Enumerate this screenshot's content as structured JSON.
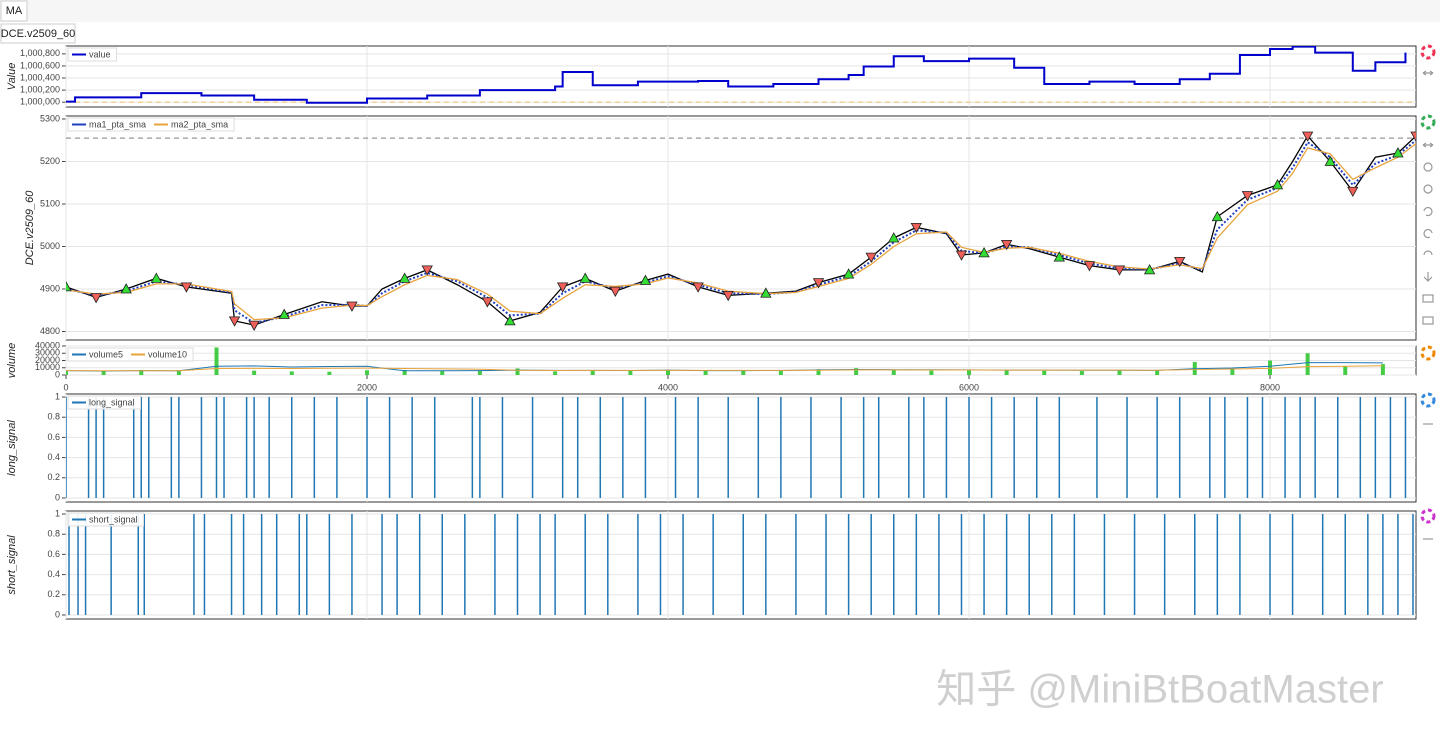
{
  "tabs": {
    "main": "MA",
    "sub": "DCE.v2509_60"
  },
  "watermark": "知乎 @MiniBtBoatMaster",
  "chart_data": [
    {
      "type": "step",
      "ylabel": "Value",
      "ylim": [
        999920,
        1000930
      ],
      "yticks": [
        {
          "value": 1000000,
          "label": "1,000,000"
        },
        {
          "value": 1000200,
          "label": "1,000,200"
        },
        {
          "value": 1000400,
          "label": "1,000,400"
        },
        {
          "value": 1000600,
          "label": "1,000,600"
        },
        {
          "value": 1000800,
          "label": "1,000,800"
        }
      ],
      "reference_line": 1000000,
      "reference_color": "#f2c57c",
      "series": [
        {
          "name": "value",
          "color": "#0000cc",
          "x": [
            0,
            60,
            500,
            900,
            1250,
            1600,
            2000,
            2400,
            2750,
            3250,
            3300,
            3500,
            3800,
            4200,
            4400,
            4700,
            5000,
            5200,
            5300,
            5500,
            5700,
            6000,
            6300,
            6500,
            6800,
            7100,
            7400,
            7600,
            7800,
            8000,
            8150,
            8300,
            8550,
            8700,
            8900
          ],
          "values": [
            1000010,
            1000080,
            1000150,
            1000110,
            1000040,
            999990,
            1000060,
            1000110,
            1000200,
            1000260,
            1000500,
            1000280,
            1000340,
            1000350,
            1000260,
            1000300,
            1000380,
            1000450,
            1000590,
            1000760,
            1000680,
            1000720,
            1000570,
            1000300,
            1000340,
            1000300,
            1000380,
            1000470,
            1000780,
            1000880,
            1000920,
            1000820,
            1000520,
            1000660,
            1000820
          ]
        }
      ]
    },
    {
      "type": "line",
      "ylabel": "DCE.v2509_60",
      "ylim": [
        4780,
        5307
      ],
      "yticks": [
        4800,
        4900,
        5000,
        5100,
        5200,
        5300
      ],
      "reference_line": 5255,
      "reference_color": "#999999",
      "x": [
        0,
        200,
        400,
        600,
        800,
        1000,
        1100,
        1120,
        1250,
        1450,
        1700,
        1900,
        2000,
        2100,
        2250,
        2400,
        2600,
        2800,
        2950,
        3150,
        3300,
        3450,
        3650,
        3850,
        4000,
        4200,
        4400,
        4650,
        4850,
        5000,
        5200,
        5350,
        5500,
        5650,
        5850,
        5950,
        6100,
        6250,
        6400,
        6600,
        6800,
        7000,
        7200,
        7400,
        7550,
        7650,
        7850,
        8050,
        8150,
        8250,
        8400,
        8550,
        8700,
        8850,
        8970
      ],
      "close": [
        4905,
        4880,
        4900,
        4925,
        4905,
        4895,
        4890,
        4825,
        4815,
        4840,
        4870,
        4860,
        4860,
        4900,
        4925,
        4945,
        4910,
        4870,
        4825,
        4845,
        4905,
        4925,
        4895,
        4920,
        4935,
        4905,
        4885,
        4890,
        4895,
        4915,
        4935,
        4975,
        5020,
        5045,
        5030,
        4980,
        4985,
        5005,
        4995,
        4975,
        4955,
        4945,
        4945,
        4965,
        4940,
        5070,
        5120,
        5145,
        5200,
        5260,
        5200,
        5130,
        5210,
        5220,
        5260
      ],
      "close_color": "#000000",
      "series": [
        {
          "name": "ma1_pta_sma",
          "color": "#1f3fbf",
          "values": [
            4900,
            4885,
            4895,
            4918,
            4910,
            4898,
            4892,
            4850,
            4820,
            4835,
            4862,
            4863,
            4860,
            4890,
            4918,
            4938,
            4918,
            4880,
            4838,
            4842,
            4890,
            4918,
            4902,
            4915,
            4930,
            4910,
            4890,
            4888,
            4893,
            4910,
            4930,
            4965,
            5010,
            5038,
            5032,
            4990,
            4984,
            5000,
            4998,
            4980,
            4960,
            4948,
            4946,
            4960,
            4945,
            5040,
            5110,
            5138,
            5185,
            5245,
            5210,
            5145,
            5195,
            5215,
            5250
          ]
        },
        {
          "name": "ma2_pta_sma",
          "color": "#e8a33c",
          "values": [
            4898,
            4888,
            4892,
            4912,
            4912,
            4900,
            4894,
            4865,
            4828,
            4832,
            4855,
            4862,
            4861,
            4882,
            4910,
            4932,
            4922,
            4888,
            4848,
            4842,
            4878,
            4910,
            4906,
            4912,
            4926,
            4914,
            4895,
            4889,
            4892,
            4906,
            4925,
            4958,
            5000,
            5030,
            5034,
            4998,
            4986,
            4996,
            4998,
            4984,
            4965,
            4952,
            4947,
            4957,
            4948,
            5020,
            5098,
            5130,
            5172,
            5232,
            5218,
            5158,
            5185,
            5210,
            5242
          ]
        }
      ],
      "buy_markers": {
        "color": "#33dd33",
        "x": [
          0,
          400,
          600,
          1450,
          2250,
          2950,
          3450,
          3850,
          4650,
          5200,
          5500,
          6100,
          6600,
          7200,
          7650,
          8050,
          8400,
          8850
        ],
        "y": [
          4905,
          4900,
          4925,
          4840,
          4925,
          4825,
          4925,
          4920,
          4890,
          4935,
          5020,
          4985,
          4975,
          4945,
          5070,
          5145,
          5200,
          5220
        ]
      },
      "sell_markers": {
        "color": "#f0605a",
        "x": [
          200,
          800,
          1120,
          1250,
          1900,
          2400,
          2800,
          3300,
          3650,
          4200,
          4400,
          5000,
          5350,
          5650,
          5950,
          6250,
          6800,
          7000,
          7400,
          7850,
          8250,
          8550,
          8970
        ],
        "y": [
          4880,
          4905,
          4825,
          4815,
          4860,
          4945,
          4870,
          4905,
          4895,
          4905,
          4885,
          4915,
          4975,
          5045,
          4980,
          5005,
          4955,
          4945,
          4965,
          5120,
          5260,
          5130,
          5260
        ]
      }
    },
    {
      "type": "bar",
      "ylabel": "volume",
      "xlim": [
        0,
        8970
      ],
      "xticks": [
        0,
        2000,
        4000,
        6000,
        8000
      ],
      "ylim": [
        0,
        40000
      ],
      "yticks": [
        0,
        10000,
        20000,
        30000,
        40000
      ],
      "bar_color": "#44cc44",
      "x": [
        0,
        250,
        500,
        750,
        1000,
        1250,
        1500,
        1750,
        2000,
        2250,
        2500,
        2750,
        3000,
        3250,
        3500,
        3750,
        4000,
        4250,
        4500,
        4750,
        5000,
        5250,
        5500,
        5750,
        6000,
        6250,
        6500,
        6750,
        7000,
        7250,
        7500,
        7750,
        8000,
        8250,
        8500,
        8750
      ],
      "values": [
        6000,
        5000,
        7000,
        5500,
        38000,
        6000,
        5000,
        4500,
        6500,
        7000,
        5500,
        6000,
        9000,
        5000,
        6500,
        5500,
        7000,
        6000,
        5500,
        6500,
        8000,
        9500,
        7000,
        6000,
        6500,
        7500,
        6000,
        5500,
        7000,
        6500,
        18000,
        9000,
        20000,
        30000,
        12000,
        15000
      ],
      "series": [
        {
          "name": "volume5",
          "color": "#1f77b4",
          "values": [
            6000,
            5600,
            6000,
            5900,
            12000,
            12500,
            11000,
            11800,
            12000,
            5800,
            5900,
            6000,
            6800,
            6300,
            6400,
            6200,
            6700,
            6000,
            6100,
            6200,
            7000,
            7600,
            7300,
            7200,
            7100,
            6800,
            6700,
            6500,
            6500,
            6300,
            8700,
            9600,
            12000,
            17000,
            17000,
            16800
          ]
        },
        {
          "name": "volume10",
          "color": "#e8a33c",
          "values": [
            6000,
            5800,
            5900,
            5900,
            9000,
            9200,
            9000,
            9300,
            9500,
            9000,
            8500,
            8000,
            6500,
            6200,
            6300,
            6300,
            6500,
            6300,
            6300,
            6300,
            6600,
            7000,
            7000,
            6900,
            6900,
            6800,
            6800,
            6700,
            6700,
            6600,
            7500,
            8200,
            9200,
            11500,
            12000,
            12800
          ]
        }
      ]
    },
    {
      "type": "impulse",
      "ylabel": "long_signal",
      "ylim": [
        -0.04,
        1.03
      ],
      "yticks": [
        0,
        0.2,
        0.4,
        0.6,
        0.8,
        1
      ],
      "series": [
        {
          "name": "long_signal",
          "color": "#1f77b4",
          "x": [
            0,
            150,
            200,
            250,
            450,
            500,
            550,
            700,
            750,
            900,
            1000,
            1050,
            1200,
            1250,
            1350,
            1500,
            1650,
            1800,
            2000,
            2150,
            2300,
            2450,
            2700,
            2750,
            2900,
            3100,
            3300,
            3400,
            3550,
            3700,
            3850,
            4050,
            4200,
            4400,
            4600,
            4750,
            4950,
            5150,
            5300,
            5400,
            5600,
            5700,
            5850,
            6000,
            6150,
            6300,
            6450,
            6600,
            6850,
            7050,
            7250,
            7400,
            7600,
            7700,
            7850,
            7950,
            8100,
            8200,
            8300,
            8450,
            8600,
            8700,
            8800,
            8900
          ],
          "values": [
            1,
            1,
            1,
            1,
            1,
            1,
            1,
            1,
            1,
            1,
            1,
            1,
            1,
            1,
            1,
            1,
            1,
            1,
            1,
            1,
            1,
            1,
            1,
            1,
            1,
            1,
            1,
            1,
            1,
            1,
            1,
            1,
            1,
            1,
            1,
            1,
            1,
            1,
            1,
            1,
            1,
            1,
            1,
            1,
            1,
            1,
            1,
            1,
            1,
            1,
            1,
            1,
            1,
            1,
            1,
            1,
            1,
            1,
            1,
            1,
            1,
            1,
            1,
            1
          ]
        }
      ]
    },
    {
      "type": "impulse",
      "ylabel": "short_signal",
      "ylim": [
        -0.04,
        1.03
      ],
      "yticks": [
        0,
        0.2,
        0.4,
        0.6,
        0.8,
        1
      ],
      "series": [
        {
          "name": "short_signal",
          "color": "#1f77b4",
          "x": [
            20,
            80,
            130,
            300,
            480,
            520,
            850,
            920,
            1100,
            1180,
            1300,
            1400,
            1550,
            1600,
            1750,
            1900,
            2100,
            2200,
            2350,
            2500,
            2650,
            2850,
            3000,
            3150,
            3250,
            3450,
            3600,
            3800,
            3950,
            4100,
            4300,
            4500,
            4650,
            4850,
            5050,
            5200,
            5350,
            5500,
            5650,
            5800,
            5950,
            6100,
            6250,
            6400,
            6550,
            6700,
            6900,
            7100,
            7300,
            7500,
            7650,
            7800,
            8000,
            8150,
            8350,
            8500,
            8650,
            8750,
            8850,
            8950
          ],
          "values": [
            1,
            1,
            1,
            1,
            1,
            1,
            1,
            1,
            1,
            1,
            1,
            1,
            1,
            1,
            1,
            1,
            1,
            1,
            1,
            1,
            1,
            1,
            1,
            1,
            1,
            1,
            1,
            1,
            1,
            1,
            1,
            1,
            1,
            1,
            1,
            1,
            1,
            1,
            1,
            1,
            1,
            1,
            1,
            1,
            1,
            1,
            1,
            1,
            1,
            1,
            1,
            1,
            1,
            1,
            1,
            1,
            1,
            1,
            1,
            1
          ]
        }
      ]
    }
  ]
}
